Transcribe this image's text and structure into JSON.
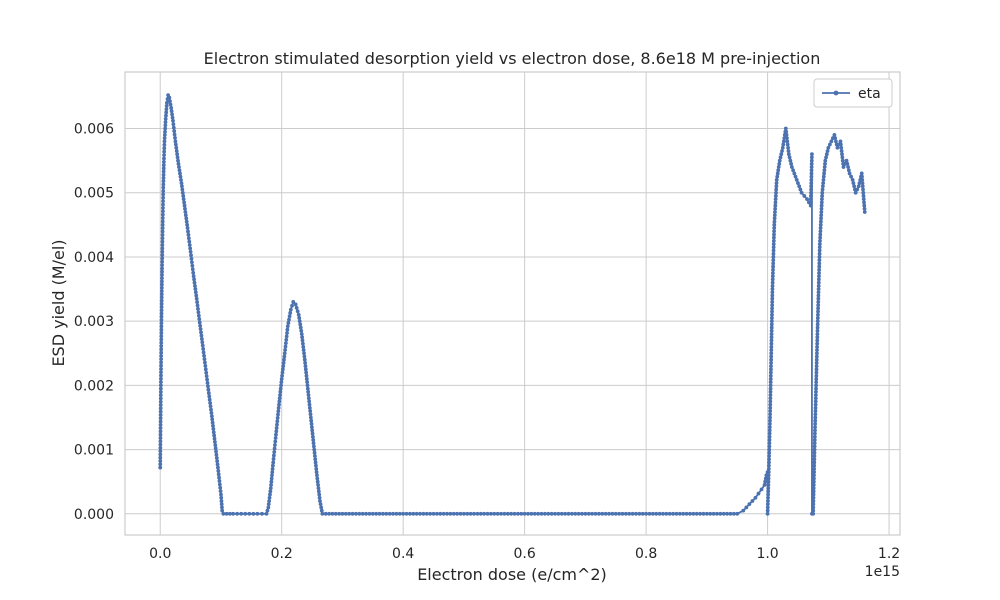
{
  "chart_data": {
    "type": "line",
    "title": "Electron stimulated desorption yield vs electron dose, 8.6e18 M pre-injection",
    "xlabel": "Electron dose (e/cm^2)",
    "ylabel": "ESD yield (M/el)",
    "x_offset_text": "1e15",
    "x_scale": 1000000000000000.0,
    "xlim": [
      -0.058,
      1.218
    ],
    "ylim": [
      -0.00033,
      0.00688
    ],
    "x_ticks": [
      0.0,
      0.2,
      0.4,
      0.6,
      0.8,
      1.0,
      1.2
    ],
    "x_tick_labels": [
      "0.0",
      "0.2",
      "0.4",
      "0.6",
      "0.8",
      "1.0",
      "1.2"
    ],
    "y_ticks": [
      0.0,
      0.001,
      0.002,
      0.003,
      0.004,
      0.005,
      0.006
    ],
    "y_tick_labels": [
      "0.000",
      "0.001",
      "0.002",
      "0.003",
      "0.004",
      "0.005",
      "0.006"
    ],
    "grid": true,
    "legend_position": "top-right",
    "colors": {
      "series": "#4c72b0",
      "grid": "#cccccc",
      "frame": "#cccccc"
    },
    "series": [
      {
        "name": "eta",
        "marker": "dot",
        "points": [
          [
            0.0,
            0.00072
          ],
          [
            0.001,
            0.00195
          ],
          [
            0.002,
            0.00302
          ],
          [
            0.003,
            0.00382
          ],
          [
            0.004,
            0.0045
          ],
          [
            0.005,
            0.00508
          ],
          [
            0.006,
            0.00548
          ],
          [
            0.007,
            0.0058
          ],
          [
            0.009,
            0.00615
          ],
          [
            0.011,
            0.0064
          ],
          [
            0.013,
            0.00652
          ],
          [
            0.015,
            0.00648
          ],
          [
            0.018,
            0.00632
          ],
          [
            0.021,
            0.00612
          ],
          [
            0.025,
            0.0058
          ],
          [
            0.03,
            0.00545
          ],
          [
            0.035,
            0.00515
          ],
          [
            0.04,
            0.0048
          ],
          [
            0.045,
            0.00445
          ],
          [
            0.05,
            0.00408
          ],
          [
            0.055,
            0.0037
          ],
          [
            0.06,
            0.00335
          ],
          [
            0.065,
            0.00298
          ],
          [
            0.07,
            0.00262
          ],
          [
            0.075,
            0.00225
          ],
          [
            0.08,
            0.00188
          ],
          [
            0.085,
            0.00152
          ],
          [
            0.09,
            0.00112
          ],
          [
            0.095,
            0.00072
          ],
          [
            0.1,
            0.0003
          ],
          [
            0.102,
            5e-05
          ],
          [
            0.104,
            0.0
          ],
          [
            0.12,
            0.0
          ],
          [
            0.14,
            0.0
          ],
          [
            0.16,
            0.0
          ],
          [
            0.175,
            0.0
          ],
          [
            0.178,
            0.0001
          ],
          [
            0.182,
            0.0004
          ],
          [
            0.186,
            0.0008
          ],
          [
            0.19,
            0.00118
          ],
          [
            0.195,
            0.00165
          ],
          [
            0.2,
            0.0021
          ],
          [
            0.205,
            0.0025
          ],
          [
            0.21,
            0.00292
          ],
          [
            0.215,
            0.00318
          ],
          [
            0.219,
            0.0033
          ],
          [
            0.223,
            0.00326
          ],
          [
            0.228,
            0.0031
          ],
          [
            0.233,
            0.0028
          ],
          [
            0.238,
            0.0024
          ],
          [
            0.243,
            0.00195
          ],
          [
            0.248,
            0.0015
          ],
          [
            0.253,
            0.00105
          ],
          [
            0.258,
            0.0006
          ],
          [
            0.263,
            0.0002
          ],
          [
            0.267,
            0.0
          ],
          [
            0.3,
            0.0
          ],
          [
            0.4,
            0.0
          ],
          [
            0.5,
            0.0
          ],
          [
            0.6,
            0.0
          ],
          [
            0.7,
            0.0
          ],
          [
            0.8,
            0.0
          ],
          [
            0.9,
            0.0
          ],
          [
            0.95,
            0.0
          ],
          [
            0.96,
            5e-05
          ],
          [
            0.97,
            0.00015
          ],
          [
            0.98,
            0.00025
          ],
          [
            0.99,
            0.00038
          ],
          [
            0.995,
            0.00045
          ],
          [
            0.998,
            0.0006
          ],
          [
            1.0,
            0.00065
          ],
          [
            1.0,
            0.0
          ],
          [
            1.002,
            0.0007
          ],
          [
            1.004,
            0.0015
          ],
          [
            1.006,
            0.0025
          ],
          [
            1.008,
            0.0035
          ],
          [
            1.011,
            0.0045
          ],
          [
            1.015,
            0.0052
          ],
          [
            1.02,
            0.0055
          ],
          [
            1.025,
            0.0057
          ],
          [
            1.03,
            0.006
          ],
          [
            1.035,
            0.0056
          ],
          [
            1.04,
            0.0054
          ],
          [
            1.048,
            0.0052
          ],
          [
            1.056,
            0.005
          ],
          [
            1.065,
            0.0049
          ],
          [
            1.071,
            0.0048
          ],
          [
            1.073,
            0.0056
          ],
          [
            1.073,
            0.0
          ],
          [
            1.075,
            0.0
          ],
          [
            1.078,
            0.0013
          ],
          [
            1.082,
            0.0028
          ],
          [
            1.086,
            0.0042
          ],
          [
            1.09,
            0.005
          ],
          [
            1.095,
            0.0055
          ],
          [
            1.1,
            0.0057
          ],
          [
            1.105,
            0.0058
          ],
          [
            1.11,
            0.0059
          ],
          [
            1.115,
            0.0057
          ],
          [
            1.12,
            0.0058
          ],
          [
            1.125,
            0.0054
          ],
          [
            1.13,
            0.0055
          ],
          [
            1.135,
            0.0053
          ],
          [
            1.14,
            0.0052
          ],
          [
            1.145,
            0.005
          ],
          [
            1.15,
            0.0051
          ],
          [
            1.155,
            0.0053
          ],
          [
            1.16,
            0.0047
          ]
        ]
      }
    ]
  }
}
